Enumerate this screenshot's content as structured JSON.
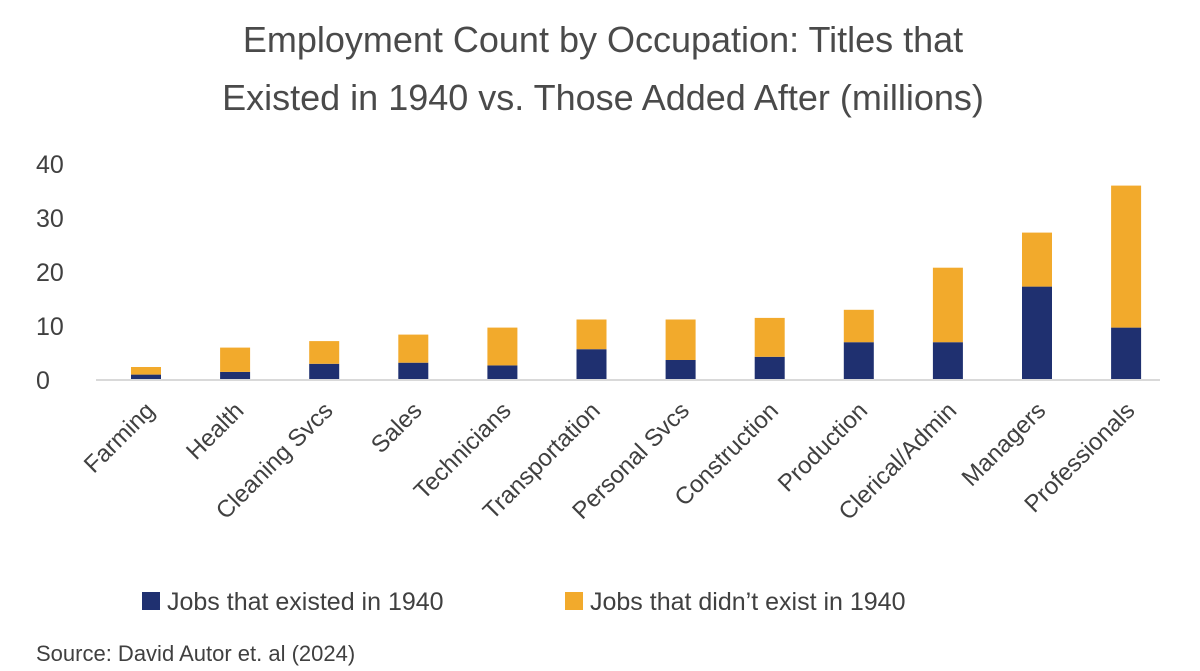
{
  "chart_data": {
    "type": "bar",
    "stacked": true,
    "title": "Employment Count by Occupation: Titles that Existed in 1940 vs. Those Added After (millions)",
    "title_lines": [
      "Employment Count by Occupation: Titles that",
      "Existed in 1940 vs. Those Added After (millions)"
    ],
    "xlabel": "",
    "ylabel": "",
    "ylim": [
      0,
      40
    ],
    "yticks": [
      0,
      10,
      20,
      30,
      40
    ],
    "grid": false,
    "legend_position": "bottom",
    "categories": [
      "Farming",
      "Health",
      "Cleaning Svcs",
      "Sales",
      "Technicians",
      "Transportation",
      "Personal Svcs",
      "Construction",
      "Production",
      "Clerical/Admin",
      "Managers",
      "Professionals"
    ],
    "series": [
      {
        "name": "Jobs that existed in 1940",
        "color": "#1f3070",
        "values": [
          1.0,
          1.5,
          3.0,
          3.2,
          2.7,
          5.7,
          3.7,
          4.3,
          7.0,
          7.0,
          17.3,
          9.7
        ]
      },
      {
        "name": "Jobs that didn’t exist in 1940",
        "color": "#f2aa2c",
        "values": [
          1.4,
          4.5,
          4.2,
          5.2,
          7.0,
          5.5,
          7.5,
          7.2,
          6.0,
          13.8,
          10.0,
          26.3
        ]
      }
    ],
    "source": "Source: David Autor et. al (2024)"
  }
}
